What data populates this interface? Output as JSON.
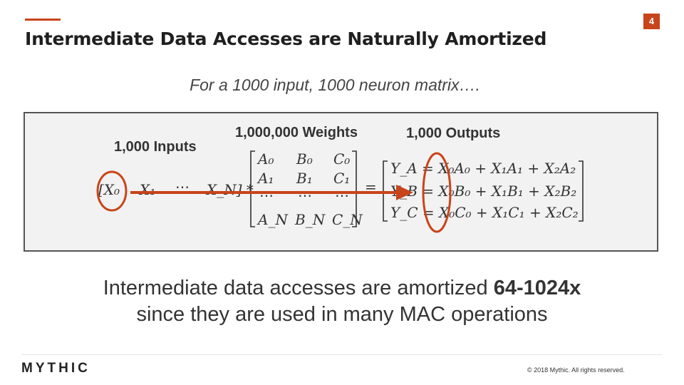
{
  "slide": {
    "number": "4",
    "title": "Intermediate Data Accesses are Naturally Amortized",
    "subtitle": "For a 1000 input, 1000 neuron matrix…."
  },
  "diagram": {
    "inputs_label": "1,000 Inputs",
    "weights_label": "1,000,000 Weights",
    "outputs_label": "1,000 Outputs",
    "input_vector": [
      "[X₀",
      "X₁",
      "⋯",
      "X_N] *"
    ],
    "weights_matrix": [
      [
        "A₀",
        "B₀",
        "C₀"
      ],
      [
        "A₁",
        "B₁",
        "C₁"
      ],
      [
        "⋯",
        "⋯",
        "⋯"
      ],
      [
        "A_N",
        "B_N",
        "C_N"
      ]
    ],
    "equals": "=",
    "outputs": [
      "Y_A = X₀A₀ + X₁A₁ + X₂A₂",
      "Y_B = X₀B₀ + X₁B₁ + X₂B₂",
      "Y_C = X₀C₀ + X₁C₁ + X₂C₂"
    ],
    "highlight_color": "#c8441a"
  },
  "body": {
    "line1_prefix": "Intermediate data accesses are amortized ",
    "line1_bold": "64-1024x",
    "line2": "since they are used in many MAC operations"
  },
  "footer": {
    "logo": "MYTHIC",
    "copyright": "© 2018 Mythic. All rights reserved."
  }
}
